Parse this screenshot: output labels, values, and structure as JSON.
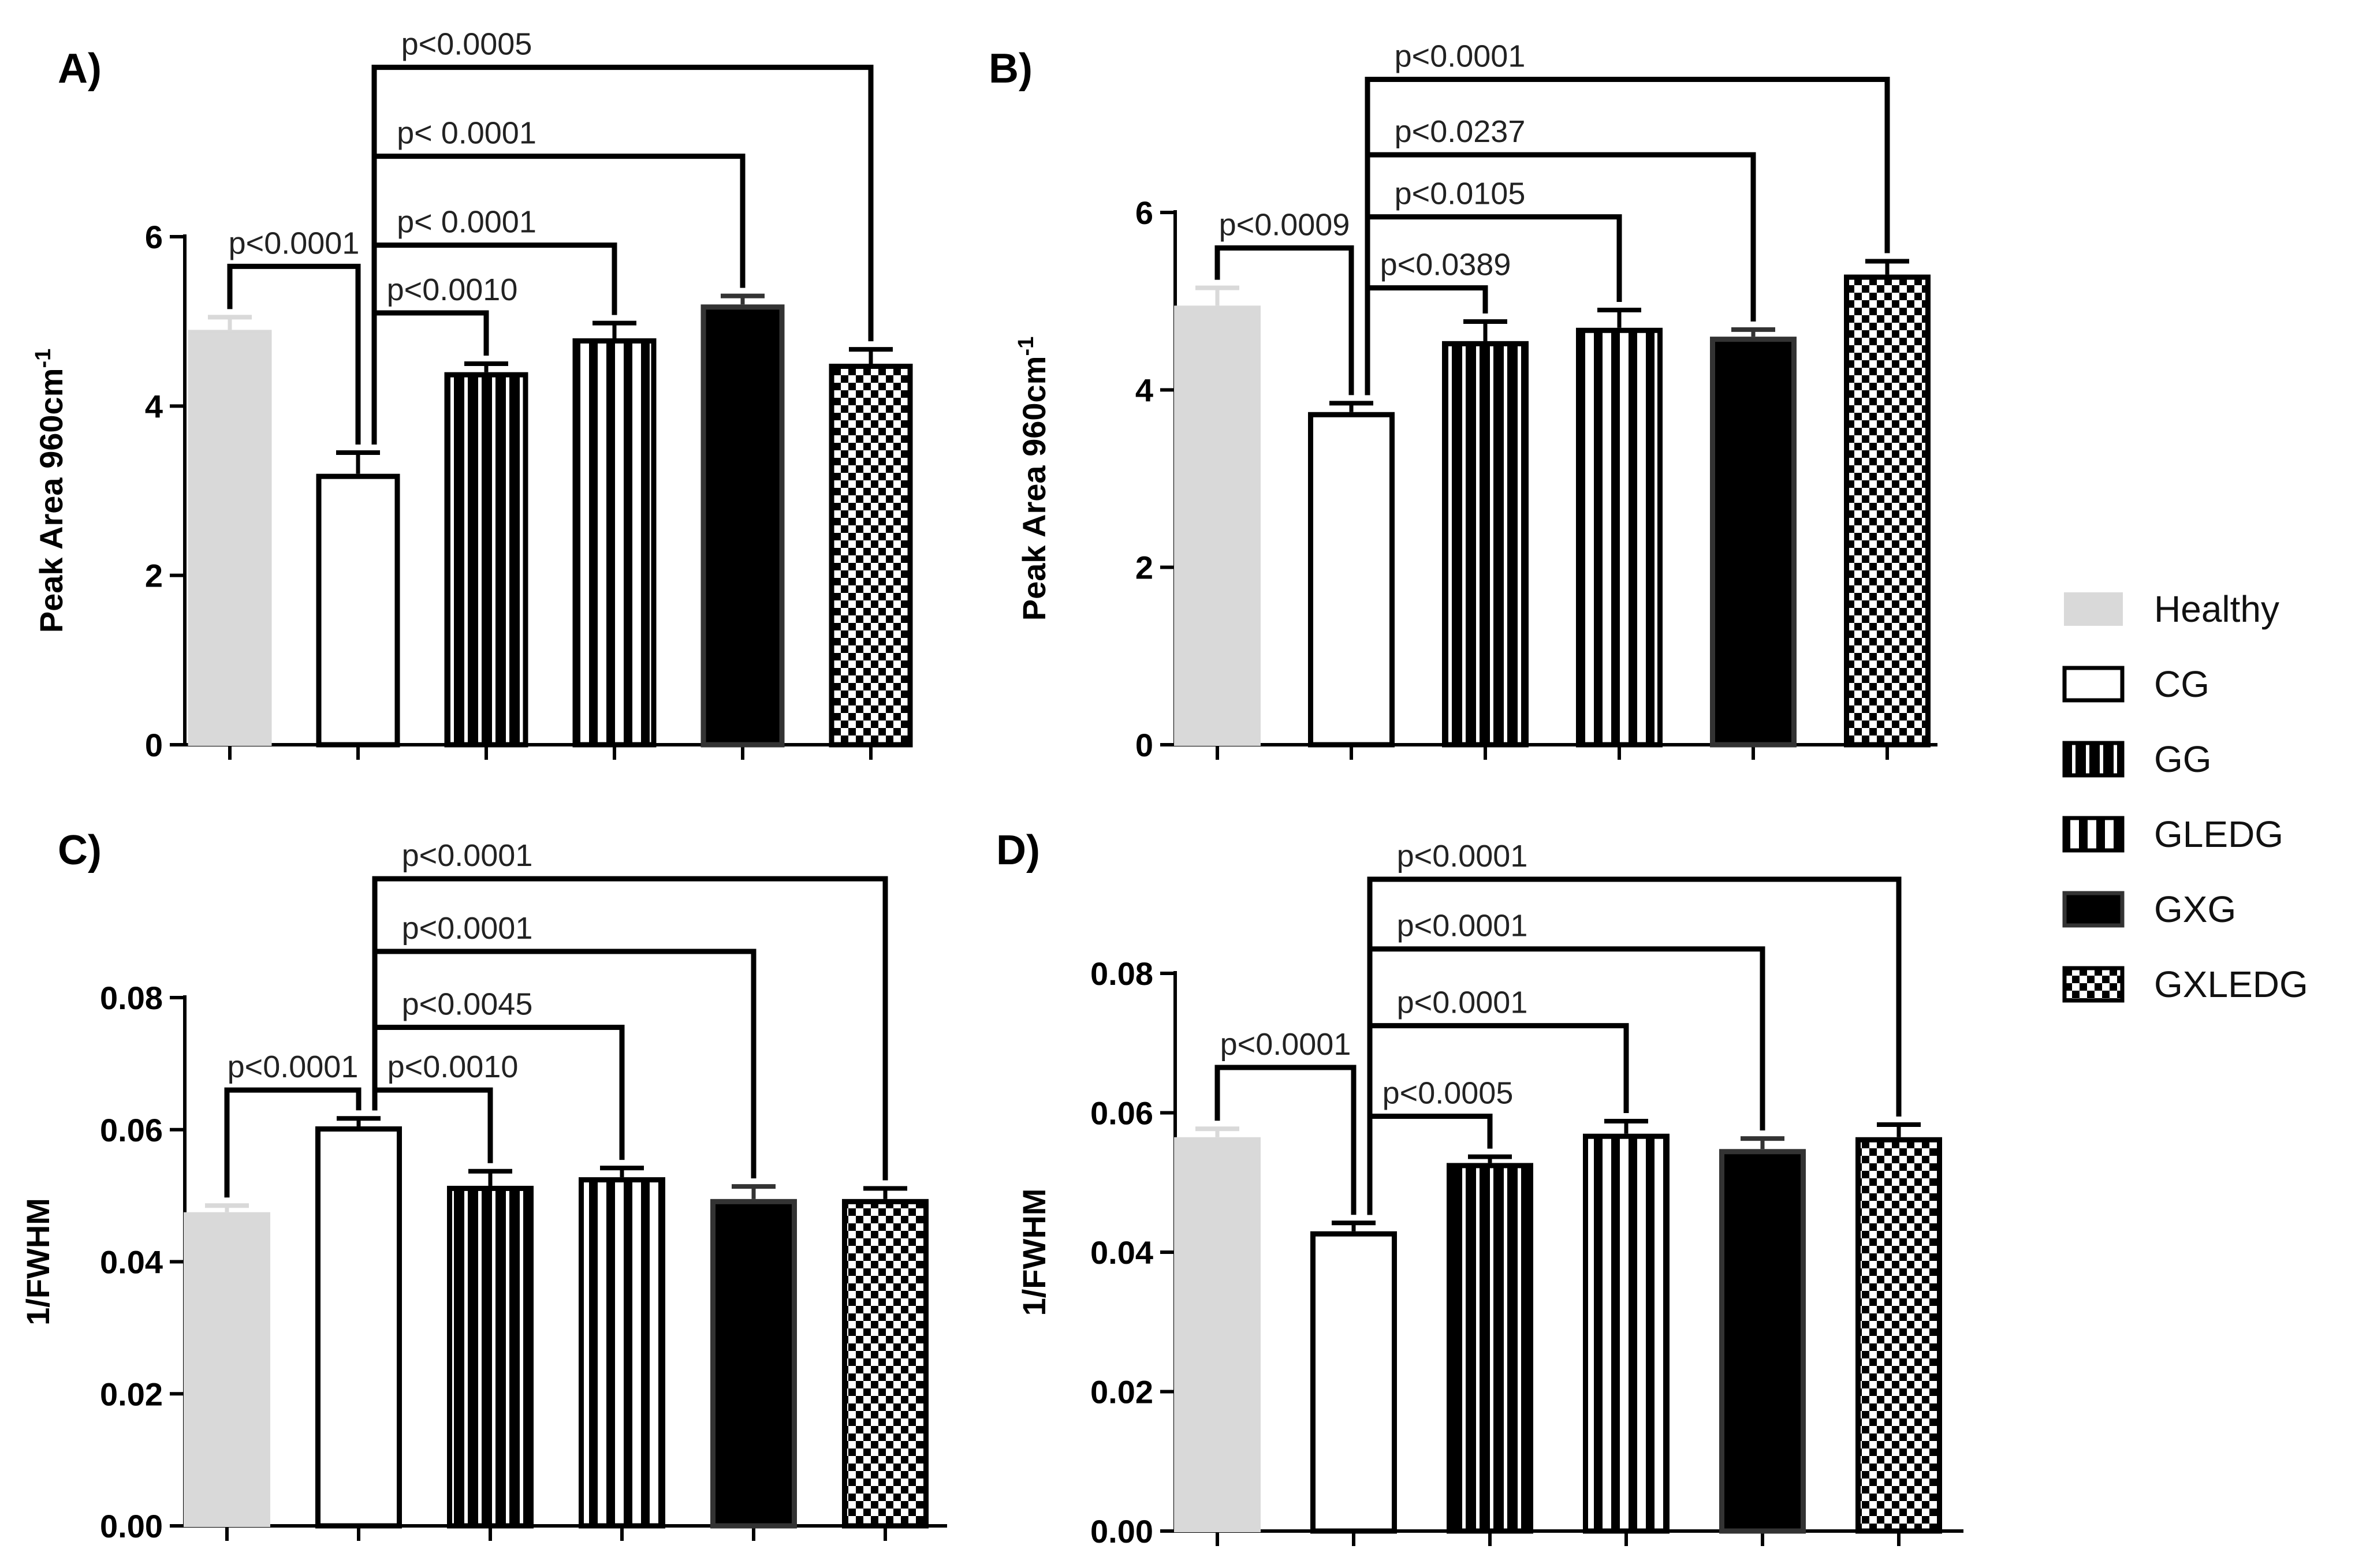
{
  "chart_data": [
    {
      "panel_label": "A)",
      "type": "bar",
      "ylabel": "Peak Area 960cm",
      "ylabel_superscript": "-1",
      "ylim": [
        0,
        6
      ],
      "yticks": [
        "0",
        "2",
        "4",
        "6"
      ],
      "categories": [
        "Healthy",
        "CG",
        "GG",
        "GLEDG",
        "GXG",
        "GXLEDG"
      ],
      "values": [
        4.9,
        3.2,
        4.4,
        4.8,
        5.2,
        4.5
      ],
      "errors": [
        0.15,
        0.25,
        0.1,
        0.18,
        0.1,
        0.17
      ],
      "comparisons": [
        {
          "from": 0,
          "to": 1,
          "label": "p<0.0001",
          "y": 5.65
        },
        {
          "from": 1,
          "to": 2,
          "label": "p<0.0010",
          "y": 5.1
        },
        {
          "from": 1,
          "to": 3,
          "label": "p< 0.0001",
          "y": 5.9
        },
        {
          "from": 1,
          "to": 4,
          "label": "p< 0.0001",
          "y": 6.95
        },
        {
          "from": 1,
          "to": 5,
          "label": "p<0.0005",
          "y": 8.0
        }
      ]
    },
    {
      "panel_label": "B)",
      "type": "bar",
      "ylabel": "Peak Area 960cm",
      "ylabel_superscript": "-1",
      "ylim": [
        0,
        6
      ],
      "yticks": [
        "0",
        "2",
        "4",
        "6"
      ],
      "categories": [
        "Healthy",
        "CG",
        "GG",
        "GLEDG",
        "GXG",
        "GXLEDG"
      ],
      "values": [
        4.95,
        3.75,
        4.55,
        4.7,
        4.6,
        5.3
      ],
      "errors": [
        0.2,
        0.1,
        0.22,
        0.2,
        0.08,
        0.15
      ],
      "comparisons": [
        {
          "from": 0,
          "to": 1,
          "label": "p<0.0009",
          "y": 5.6
        },
        {
          "from": 1,
          "to": 2,
          "label": "p<0.0389",
          "y": 5.15
        },
        {
          "from": 1,
          "to": 3,
          "label": "p<0.0105",
          "y": 5.95
        },
        {
          "from": 1,
          "to": 4,
          "label": "p<0.0237",
          "y": 6.65
        },
        {
          "from": 1,
          "to": 5,
          "label": "p<0.0001",
          "y": 7.5
        }
      ]
    },
    {
      "panel_label": "C)",
      "type": "bar",
      "ylabel": "1/FWHM",
      "ylim": [
        0,
        0.08
      ],
      "yticks": [
        "0.00",
        "0.02",
        "0.04",
        "0.06",
        "0.08"
      ],
      "categories": [
        "Healthy",
        "CG",
        "GG",
        "GLEDG",
        "GXG",
        "GXLEDG"
      ],
      "values": [
        0.0475,
        0.0605,
        0.0515,
        0.0528,
        0.0495,
        0.0495
      ],
      "errors": [
        0.001,
        0.0012,
        0.0022,
        0.0014,
        0.0019,
        0.0016
      ],
      "comparisons": [
        {
          "from": 0,
          "to": 1,
          "label": "p<0.0001",
          "y": 0.066
        },
        {
          "from": 1,
          "to": 2,
          "label": "p<0.0010",
          "y": 0.066
        },
        {
          "from": 1,
          "to": 3,
          "label": "p<0.0045",
          "y": 0.0755
        },
        {
          "from": 1,
          "to": 4,
          "label": "p<0.0001",
          "y": 0.087
        },
        {
          "from": 1,
          "to": 5,
          "label": "p<0.0001",
          "y": 0.098
        }
      ]
    },
    {
      "panel_label": "D)",
      "type": "bar",
      "ylabel": "1/FWHM",
      "ylim": [
        0,
        0.08
      ],
      "yticks": [
        "0.00",
        "0.02",
        "0.04",
        "0.06",
        "0.08"
      ],
      "categories": [
        "Healthy",
        "CG",
        "GG",
        "GLEDG",
        "GXG",
        "GXLEDG"
      ],
      "values": [
        0.0565,
        0.043,
        0.0528,
        0.057,
        0.0548,
        0.0565
      ],
      "errors": [
        0.0012,
        0.0012,
        0.0009,
        0.0018,
        0.0015,
        0.0018
      ],
      "comparisons": [
        {
          "from": 0,
          "to": 1,
          "label": "p<0.0001",
          "y": 0.0665
        },
        {
          "from": 1,
          "to": 2,
          "label": "p<0.0005",
          "y": 0.0595
        },
        {
          "from": 1,
          "to": 3,
          "label": "p<0.0001",
          "y": 0.0725
        },
        {
          "from": 1,
          "to": 4,
          "label": "p<0.0001",
          "y": 0.0835
        },
        {
          "from": 1,
          "to": 5,
          "label": "p<0.0001",
          "y": 0.0935
        }
      ]
    }
  ],
  "legend": {
    "entries": [
      {
        "label": "Healthy",
        "pattern": "healthy"
      },
      {
        "label": "CG",
        "pattern": "cg"
      },
      {
        "label": "GG",
        "pattern": "gg"
      },
      {
        "label": "GLEDG",
        "pattern": "gledg"
      },
      {
        "label": "GXG",
        "pattern": "gxg"
      },
      {
        "label": "GXLEDG",
        "pattern": "gxledg"
      }
    ]
  },
  "colors": {
    "healthy": "#d9d9d9",
    "ink": "#000000",
    "background": "#ffffff"
  }
}
